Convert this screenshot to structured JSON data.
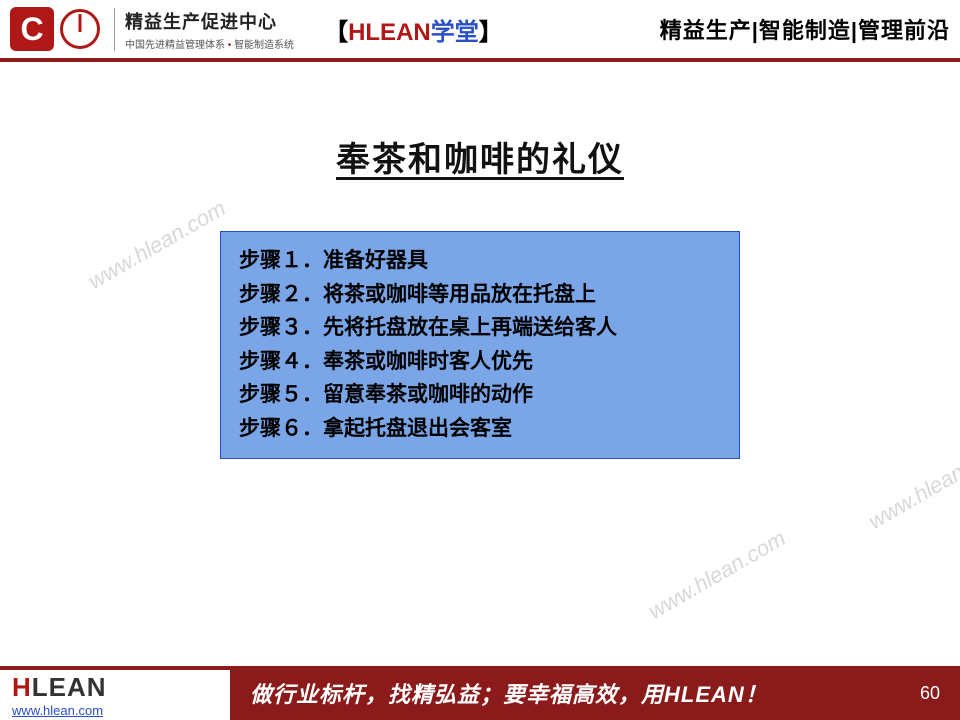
{
  "header": {
    "org_title": "精益生产促进中心",
    "org_sub_1": "中国先进精益管理体系",
    "org_sub_2": "智能制造系统",
    "brand_bracket_l": "【",
    "brand_hlean": "HLEAN",
    "brand_school": "学堂",
    "brand_bracket_r": "】",
    "tags": "精益生产|智能制造|管理前沿"
  },
  "slide": {
    "title": "奉茶和咖啡的礼仪",
    "steps": [
      "步骤１．准备好器具",
      "步骤２．将茶或咖啡等用品放在托盘上",
      "步骤３．先将托盘放在桌上再端送给客人",
      "步骤４．奉茶或咖啡时客人优先",
      "步骤５．留意奉茶或咖啡的动作",
      "步骤６．拿起托盘退出会客室"
    ],
    "watermark": "www.hlean.com",
    "content_box_bg": "#7aa6e8",
    "content_box_border": "#2a4fc7"
  },
  "footer": {
    "logo_h": "H",
    "logo_rest": "LEAN",
    "url": "www.hlean.com",
    "slogan": "做行业标杆，找精弘益；要幸福高效，用HLEAN！",
    "page": "60",
    "bar_color": "#8b1a1a"
  }
}
